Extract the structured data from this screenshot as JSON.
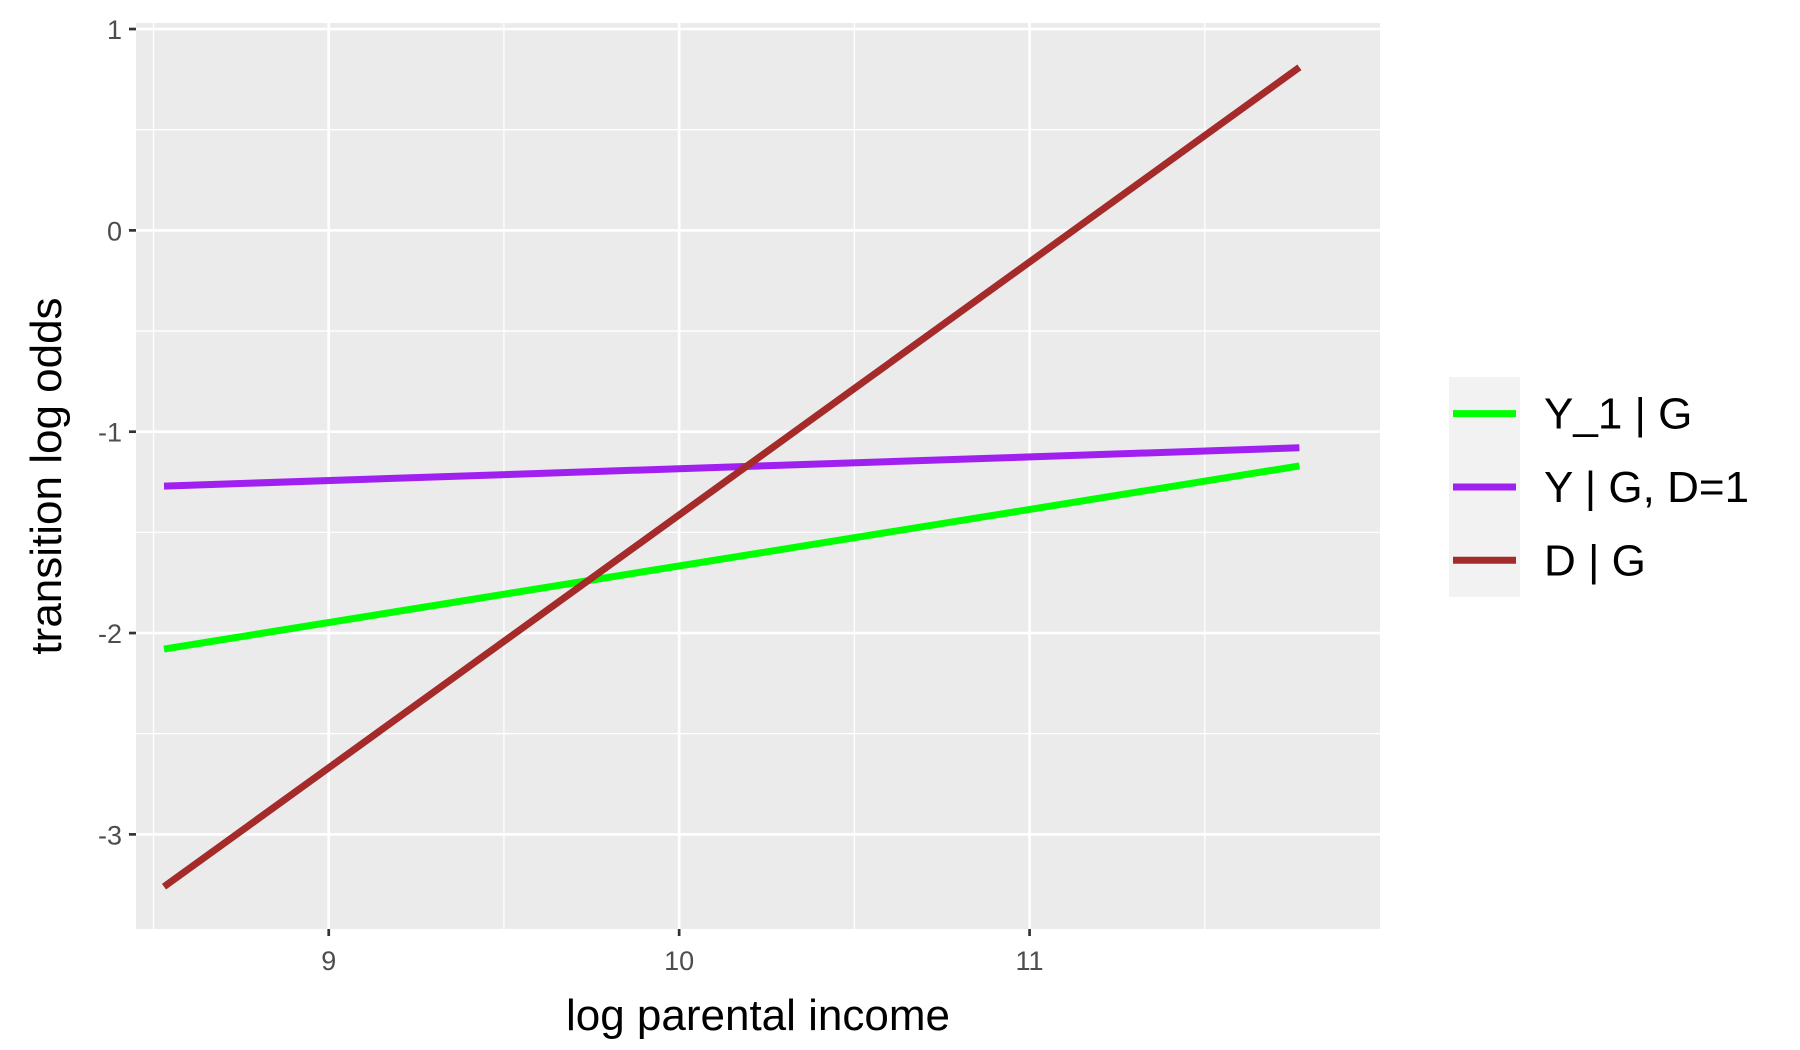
{
  "chart_data": {
    "type": "line",
    "title": "",
    "xlabel": "log parental income",
    "ylabel": "transition log odds",
    "xlim": [
      8.45,
      12.0
    ],
    "ylim": [
      -3.47,
      1.03
    ],
    "xticks": [
      9,
      10,
      11
    ],
    "yticks": [
      1,
      0,
      -1,
      -2,
      -3
    ],
    "xtick_labels": [
      "9",
      "10",
      "11"
    ],
    "ytick_labels": [
      "1",
      "0",
      "-1",
      "-2",
      "-3"
    ],
    "grid": true,
    "legend_position": "right",
    "series": [
      {
        "name": "Y_1 | G",
        "color": "#00ff00",
        "x": [
          8.53,
          11.77
        ],
        "y": [
          -2.08,
          -1.17
        ]
      },
      {
        "name": "Y | G, D=1",
        "color": "#a020f0",
        "x": [
          8.53,
          11.77
        ],
        "y": [
          -1.27,
          -1.08
        ]
      },
      {
        "name": "D | G",
        "color": "#a52a2a",
        "x": [
          8.53,
          11.77
        ],
        "y": [
          -3.26,
          0.81
        ]
      }
    ]
  }
}
